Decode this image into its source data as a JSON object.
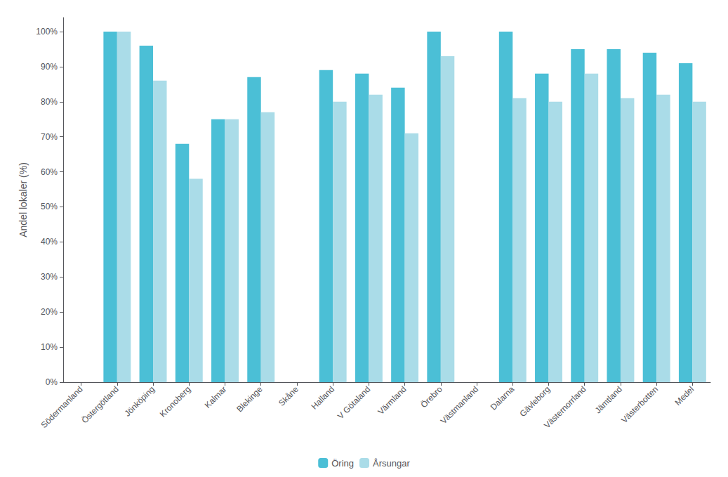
{
  "chart_data": {
    "type": "bar",
    "ylabel": "Andel lokaler (%)",
    "categories": [
      "Södermanland",
      "Östergötland",
      "Jönköping",
      "Kronoberg",
      "Kalmar",
      "Blekinge",
      "Skåne",
      "Halland",
      "V Götaland",
      "Värmland",
      "Örebro",
      "Västmanland",
      "Dalarna",
      "Gävleborg",
      "Västernorrland",
      "Jämtland",
      "Västerbotten",
      "Medel"
    ],
    "series": [
      {
        "name": "Öring",
        "color": "#4BBfd6",
        "values": [
          null,
          100,
          96,
          68,
          75,
          87,
          null,
          89,
          88,
          84,
          100,
          null,
          100,
          88,
          95,
          95,
          94,
          91
        ]
      },
      {
        "name": "Årsungar",
        "color": "#AADCE8",
        "values": [
          null,
          100,
          86,
          58,
          75,
          77,
          null,
          80,
          82,
          71,
          93,
          null,
          81,
          80,
          88,
          81,
          82,
          80
        ]
      }
    ],
    "ylim": [
      0,
      104
    ],
    "yticks": [
      {
        "value": 0,
        "label": "0%"
      },
      {
        "value": 10,
        "label": "10%"
      },
      {
        "value": 20,
        "label": "20%"
      },
      {
        "value": 30,
        "label": "30%"
      },
      {
        "value": 40,
        "label": "40%"
      },
      {
        "value": 50,
        "label": "50%"
      },
      {
        "value": 60,
        "label": "60%"
      },
      {
        "value": 70,
        "label": "70%"
      },
      {
        "value": 80,
        "label": "80%"
      },
      {
        "value": 90,
        "label": "90%"
      },
      {
        "value": 100,
        "label": "100%"
      }
    ],
    "grid": false,
    "legend": "bottom"
  }
}
